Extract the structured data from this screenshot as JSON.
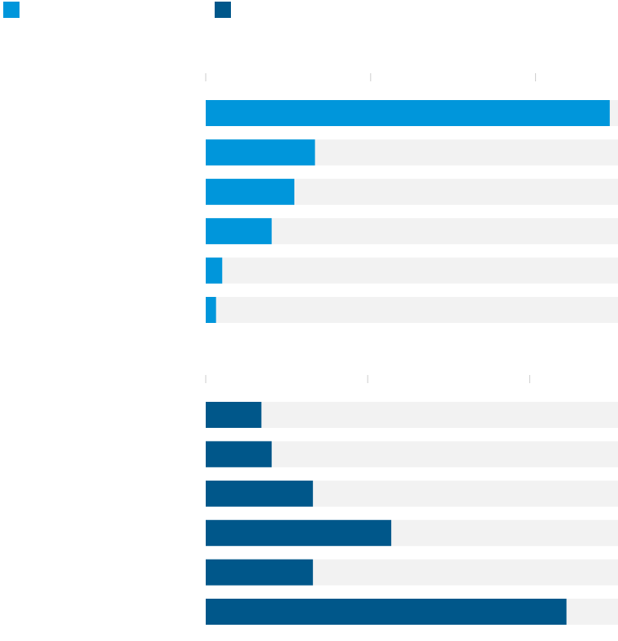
{
  "colors": {
    "series_1": "#0096db",
    "series_2": "#00578a",
    "track": "#f2f2f2",
    "tick": "#cccccc"
  },
  "chart_data": [
    {
      "type": "bar",
      "orientation": "horizontal",
      "series_index": 0,
      "color": "#0096db",
      "values": [
        98,
        26.5,
        21.5,
        16,
        4,
        2.5
      ],
      "xlim": [
        0,
        100
      ],
      "ticks": [
        0,
        40,
        80
      ],
      "grid": false
    },
    {
      "type": "bar",
      "orientation": "horizontal",
      "series_index": 1,
      "color": "#00578a",
      "values": [
        13.5,
        16,
        26,
        45,
        26,
        87.5
      ],
      "xlim": [
        0,
        100
      ],
      "ticks": [
        0,
        40,
        80
      ],
      "grid": false
    }
  ]
}
